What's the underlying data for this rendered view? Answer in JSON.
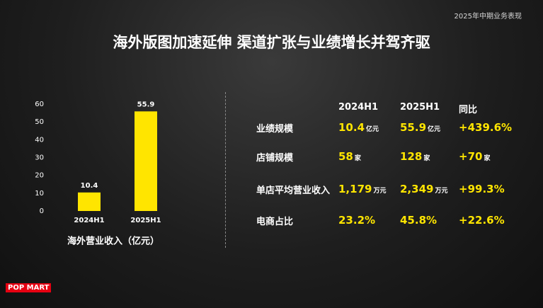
{
  "header": {
    "corner": "2025年中期业务表现",
    "title": "海外版图加速延伸  渠道扩张与业绩增长并驾齐驱"
  },
  "chart_data": {
    "type": "bar",
    "categories": [
      "2024H1",
      "2025H1"
    ],
    "values": [
      10.4,
      55.9
    ],
    "color": "#ffe500",
    "ylim": [
      0,
      60
    ],
    "yticks": [
      0,
      10,
      20,
      30,
      40,
      50,
      60
    ],
    "x_label": "海外营业收入（亿元）"
  },
  "table": {
    "columns": [
      "2024H1",
      "2025H1",
      "同比"
    ],
    "rows": [
      {
        "label": "业绩规模",
        "cells": [
          {
            "value": "10.4",
            "unit": "亿元"
          },
          {
            "value": "55.9",
            "unit": "亿元"
          },
          {
            "value": "+439.6%"
          }
        ]
      },
      {
        "label": "店铺规模",
        "cells": [
          {
            "value": "58",
            "unit": "家"
          },
          {
            "value": "128",
            "unit": "家"
          },
          {
            "value": "+70",
            "unit": "家"
          }
        ]
      },
      {
        "label": "单店平均营业收入",
        "cells": [
          {
            "value": "1,179",
            "unit": "万元"
          },
          {
            "value": "2,349",
            "unit": "万元"
          },
          {
            "value": "+99.3%"
          }
        ]
      },
      {
        "label": "电商占比",
        "cells": [
          {
            "value": "23.2%"
          },
          {
            "value": "45.8%"
          },
          {
            "value": "+22.6%"
          }
        ]
      }
    ]
  },
  "brand": "POP MART"
}
